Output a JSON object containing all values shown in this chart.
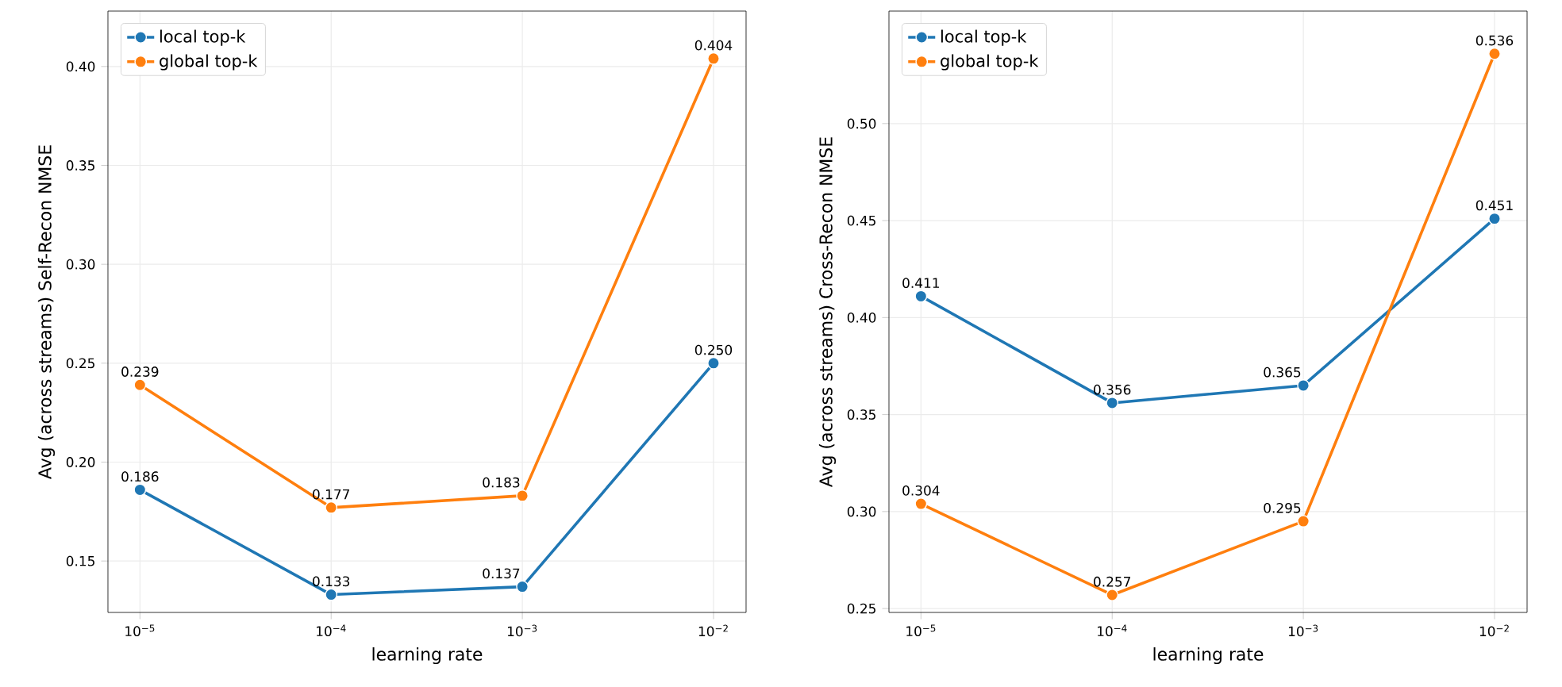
{
  "chart_data": [
    {
      "type": "line",
      "xlabel": "learning rate",
      "ylabel": "Avg (across streams) Self-Recon NMSE",
      "x": [
        1e-05,
        0.0001,
        0.001,
        0.01
      ],
      "series": [
        {
          "name": "local top-k",
          "color": "#1f77b4",
          "values": [
            0.186,
            0.133,
            0.137,
            0.25
          ],
          "value_labels": [
            "0.186",
            "0.133",
            "0.137",
            "0.250"
          ]
        },
        {
          "name": "global top-k",
          "color": "#ff7f0e",
          "values": [
            0.239,
            0.177,
            0.183,
            0.404
          ],
          "value_labels": [
            "0.239",
            "0.177",
            "0.183",
            "0.404"
          ]
        }
      ],
      "log": "x",
      "xlim": [
        6.8e-06,
        0.0148
      ],
      "ylim": [
        0.124,
        0.428
      ],
      "yticks": [
        0.15,
        {
          "value": 0.2,
          "label": "0.20"
        },
        0.25,
        {
          "value": 0.3,
          "label": "0.30"
        },
        0.35,
        {
          "value": 0.4,
          "label": "0.40"
        }
      ],
      "xticks": [
        {
          "value": 1e-05,
          "label": "10$^{−5}$"
        },
        {
          "value": 0.0001,
          "label": "10$^{−4}$"
        },
        {
          "value": 0.001,
          "label": "10$^{−3}$"
        },
        {
          "value": 0.01,
          "label": "10$^{−2}$"
        }
      ],
      "grid": true,
      "legend": "top left",
      "marker": "circle",
      "line_style": "solid"
    },
    {
      "type": "line",
      "xlabel": "learning rate",
      "ylabel": "Avg (across streams) Cross-Recon NMSE",
      "x": [
        1e-05,
        0.0001,
        0.001,
        0.01
      ],
      "series": [
        {
          "name": "local top-k",
          "color": "#1f77b4",
          "values": [
            0.411,
            0.356,
            0.365,
            0.451
          ],
          "value_labels": [
            "0.411",
            "0.356",
            "0.365",
            "0.451"
          ]
        },
        {
          "name": "global top-k",
          "color": "#ff7f0e",
          "values": [
            0.304,
            0.257,
            0.295,
            0.536
          ],
          "value_labels": [
            "0.304",
            "0.257",
            "0.295",
            "0.536"
          ]
        }
      ],
      "log": "x",
      "xlim": [
        6.8e-06,
        0.0148
      ],
      "ylim": [
        0.248,
        0.558
      ],
      "yticks": [
        0.25,
        {
          "value": 0.3,
          "label": "0.30"
        },
        0.35,
        {
          "value": 0.4,
          "label": "0.40"
        },
        0.45,
        {
          "value": 0.5,
          "label": "0.50"
        }
      ],
      "xticks": [
        {
          "value": 1e-05,
          "label": "10$^{−5}$"
        },
        {
          "value": 0.0001,
          "label": "10$^{−4}$"
        },
        {
          "value": 0.001,
          "label": "10$^{−3}$"
        },
        {
          "value": 0.01,
          "label": "10$^{−2}$"
        }
      ],
      "grid": true,
      "legend": "top left",
      "marker": "circle",
      "line_style": "solid"
    }
  ]
}
